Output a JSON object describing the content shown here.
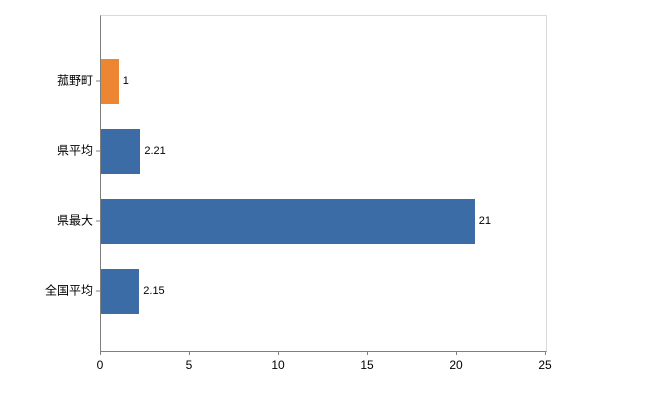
{
  "chart_data": {
    "type": "bar",
    "orientation": "horizontal",
    "title": "",
    "xlabel": "",
    "ylabel": "",
    "categories": [
      "菰野町",
      "県平均",
      "県最大",
      "全国平均"
    ],
    "values": [
      1,
      2.21,
      21,
      2.15
    ],
    "value_labels": [
      "1",
      "2.21",
      "21",
      "2.15"
    ],
    "bar_colors": [
      "#ED8633",
      "#3B6CA5",
      "#3B6CA5",
      "#3B6CA5"
    ],
    "xlim": [
      0,
      25
    ],
    "x_ticks": [
      0,
      5,
      10,
      15,
      20,
      25
    ],
    "x_tick_labels": [
      "0",
      "5",
      "10",
      "15",
      "20",
      "25"
    ],
    "grid": false,
    "legend": false,
    "background_color": "#ffffff",
    "axis_color": "#7f7f7f"
  }
}
